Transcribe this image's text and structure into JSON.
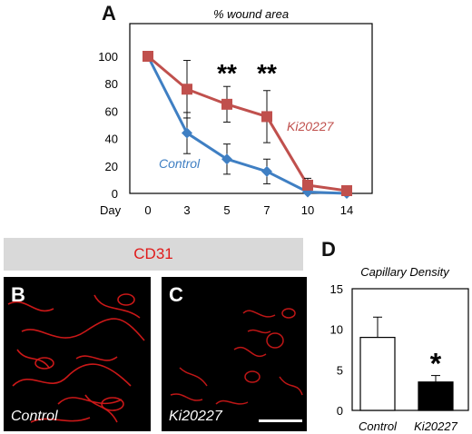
{
  "panels": {
    "a_letter": "A",
    "b_letter": "B",
    "c_letter": "C",
    "d_letter": "D"
  },
  "cd31_label": "CD31",
  "image_b_label": "Control",
  "image_c_label": "Ki20227",
  "colors": {
    "control": "#3f7fc3",
    "ki20227": "#c0504d",
    "stain": "#e01b1b",
    "band": "#d9d9d9"
  },
  "chart_data": [
    {
      "type": "line",
      "title": "% wound area",
      "xlabel": "Day",
      "ylabel": "",
      "x": [
        0,
        3,
        5,
        7,
        10,
        14
      ],
      "x_tick_labels": [
        "0",
        "3",
        "5",
        "7",
        "10",
        "14"
      ],
      "y_tick_labels": [
        "0",
        "20",
        "40",
        "60",
        "80",
        "100"
      ],
      "ylim": [
        0,
        100
      ],
      "grid": false,
      "series": [
        {
          "name": "Control",
          "values": [
            100,
            44,
            25,
            16,
            1,
            0
          ],
          "error": [
            0,
            15,
            11,
            9,
            0,
            0
          ]
        },
        {
          "name": "Ki20227",
          "values": [
            100,
            76,
            65,
            56,
            6,
            2
          ],
          "error": [
            0,
            21,
            13,
            19,
            5,
            0
          ]
        }
      ],
      "annotations": [
        {
          "text": "**",
          "x": 5
        },
        {
          "text": "**",
          "x": 7
        }
      ]
    },
    {
      "type": "bar",
      "title": "Capillary Density",
      "categories": [
        "Control",
        "Ki20227"
      ],
      "values": [
        9,
        3.5
      ],
      "error": [
        2.5,
        0.8
      ],
      "fills": [
        "#ffffff",
        "#000000"
      ],
      "y_tick_labels": [
        "0",
        "5",
        "10",
        "15"
      ],
      "ylim": [
        0,
        15
      ],
      "grid": false,
      "annotations": [
        {
          "text": "*",
          "category": "Ki20227"
        }
      ]
    }
  ]
}
